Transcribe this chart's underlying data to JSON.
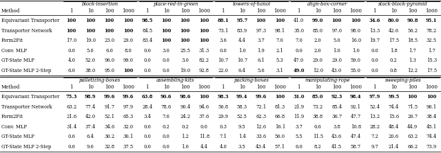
{
  "top_groups": [
    "block-insertion",
    "place-red-in-green",
    "towers-of-hanoi",
    "align-box-corner",
    "stack-block-pyramid"
  ],
  "bottom_groups": [
    "palletizing-boxes",
    "assembling-kits",
    "packing-boxes",
    "manipulating-rope",
    "sweeping-piles"
  ],
  "sub_cols": [
    "1",
    "10",
    "100",
    "1000"
  ],
  "methods": [
    "Equivariant Transporter",
    "Transporter Network",
    "Form2Fit",
    "Conv. MLP",
    "GT-State MLP",
    "GT-State MLP 2-Step"
  ],
  "top_data": {
    "block-insertion": {
      "Equivariant Transporter": [
        "100",
        "100",
        "100",
        "100"
      ],
      "Transporter Network": [
        "100",
        "100",
        "100",
        "100"
      ],
      "Form2Fit": [
        "17.0",
        "19.0",
        "23.0",
        "29.0"
      ],
      "Conv. MLP": [
        "0.0",
        "5.0",
        "6.0",
        "8.0"
      ],
      "GT-State MLP": [
        "4.0",
        "52.0",
        "96.0",
        "99.0"
      ],
      "GT-State MLP 2-Step": [
        "6.0",
        "38.0",
        "95.0",
        "100"
      ]
    },
    "place-red-in-green": {
      "Equivariant Transporter": [
        "98.5",
        "100",
        "100",
        "100"
      ],
      "Transporter Network": [
        "84.5",
        "100",
        "100",
        "100"
      ],
      "Form2Fit": [
        "83.4",
        "100",
        "100",
        "100"
      ],
      "Conv. MLP": [
        "0.0",
        "3.0",
        "25.5",
        "31.3"
      ],
      "GT-State MLP": [
        "0.0",
        "0.0",
        "3.0",
        "82.2"
      ],
      "GT-State MLP 2-Step": [
        "0.0",
        "0.0",
        "19.0",
        "92.8"
      ]
    },
    "towers-of-hanoi": {
      "Equivariant Transporter": [
        "88.1",
        "95.7",
        "100",
        "100"
      ],
      "Transporter Network": [
        "73.1",
        "83.9",
        "97.3",
        "98.1"
      ],
      "Form2Fit": [
        "3.6",
        "4.4",
        "3.7",
        "7.0"
      ],
      "Conv. MLP": [
        "0.0",
        "1.0",
        "1.9",
        "2.1"
      ],
      "GT-State MLP": [
        "10.7",
        "10.7",
        "6.1",
        "5.3"
      ],
      "GT-State MLP 2-Step": [
        "22.0",
        "6.4",
        "5.6",
        "3.1"
      ]
    },
    "align-box-corner": {
      "Equivariant Transporter": [
        "41.0",
        "99.0",
        "100",
        "100"
      ],
      "Transporter Network": [
        "35.0",
        "85.0",
        "97.0",
        "98.0"
      ],
      "Form2Fit": [
        "7.0",
        "2.0",
        "5.0",
        "16.0"
      ],
      "Conv. MLP": [
        "0.0",
        "2.0",
        "1.0",
        "1.0"
      ],
      "GT-State MLP": [
        "47.0",
        "29.0",
        "29.0",
        "59.0"
      ],
      "GT-State MLP 2-Step": [
        "49.0",
        "12.0",
        "43.0",
        "55.0"
      ]
    },
    "stack-block-pyramid": {
      "Equivariant Transporter": [
        "34.6",
        "80.0",
        "90.8",
        "95.1"
      ],
      "Transporter Network": [
        "13.3",
        "42.6",
        "56.2",
        "78.2"
      ],
      "Form2Fit": [
        "19.7",
        "17.5",
        "18.5",
        "32.5"
      ],
      "Conv. MLP": [
        "0.0",
        "1.8",
        "1.7",
        "1.7"
      ],
      "GT-State MLP": [
        "0.0",
        "0.2",
        "1.3",
        "15.3"
      ],
      "GT-State MLP 2-Step": [
        "0.0",
        "0.8",
        "12.2",
        "17.5"
      ]
    }
  },
  "bottom_data": {
    "palletizing-boxes": {
      "Equivariant Transporter": [
        "75.3",
        "98.9",
        "99.6",
        "99.6"
      ],
      "Transporter Network": [
        "63.2",
        "77.4",
        "91.7",
        "97.9"
      ],
      "Form2Fit": [
        "21.6",
        "42.0",
        "52.1",
        "65.3"
      ],
      "Conv. MLP": [
        "31.4",
        "37.4",
        "34.6",
        "32.0"
      ],
      "GT-State MLP": [
        "0.6",
        "6.4",
        "30.2",
        "30.1"
      ],
      "GT-State MLP 2-Step": [
        "0.6",
        "9.6",
        "32.8",
        "37.5"
      ]
    },
    "assembling-kits": {
      "Equivariant Transporter": [
        "63.8",
        "90.6",
        "98.6",
        "100"
      ],
      "Transporter Network": [
        "28.4",
        "78.6",
        "90.4",
        "94.6"
      ],
      "Form2Fit": [
        "3.4",
        "7.6",
        "24.2",
        "37.6"
      ],
      "Conv. MLP": [
        "0.0",
        "0.2",
        "0.2",
        "0.0"
      ],
      "GT-State MLP": [
        "0.0",
        "0.0",
        "1.2",
        "11.8"
      ],
      "GT-State MLP 2-Step": [
        "0.0",
        "0.0",
        "1.6",
        "4.4"
      ]
    },
    "packing-boxes": {
      "Equivariant Transporter": [
        "98.3",
        "99.4",
        "99.6",
        "100"
      ],
      "Transporter Network": [
        "56.8",
        "58.3",
        "72.1",
        "81.3"
      ],
      "Form2Fit": [
        "29.9",
        "52.5",
        "62.3",
        "66.8"
      ],
      "Conv. MLP": [
        "0.3",
        "9.5",
        "12.6",
        "16.1"
      ],
      "GT-State MLP": [
        "7.1",
        "1.4",
        "33.6",
        "56.0"
      ],
      "GT-State MLP 2-Step": [
        "4.0",
        "3.5",
        "43.4",
        "57.1"
      ]
    },
    "manipulating-rope": {
      "Equivariant Transporter": [
        "31.0",
        "85.0",
        "92.3",
        "98.4"
      ],
      "Transporter Network": [
        "21.9",
        "73.2",
        "85.4",
        "92.1"
      ],
      "Form2Fit": [
        "11.9",
        "38.8",
        "36.7",
        "47.7"
      ],
      "Conv. MLP": [
        "3.7",
        "6.6",
        "3.8",
        "10.8"
      ],
      "GT-State MLP": [
        "5.5",
        "11.5",
        "43.6",
        "47.4"
      ],
      "GT-State MLP 2-Step": [
        "6.0",
        "8.2",
        "41.5",
        "58.7"
      ]
    },
    "sweeping-piles": {
      "Equivariant Transporter": [
        "97.9",
        "99.5",
        "100",
        "100"
      ],
      "Transporter Network": [
        "52.4",
        "74.4",
        "71.5",
        "96.1"
      ],
      "Form2Fit": [
        "13.2",
        "15.6",
        "26.7",
        "38.4"
      ],
      "Conv. MLP": [
        "28.2",
        "48.4",
        "44.9",
        "45.1"
      ],
      "GT-State MLP": [
        "7.2",
        "20.6",
        "63.2",
        "74.4"
      ],
      "GT-State MLP 2-Step": [
        "9.7",
        "21.4",
        "66.2",
        "73.9"
      ]
    }
  },
  "bold_top": {
    "block-insertion": {
      "Equivariant Transporter": [
        true,
        true,
        true,
        true
      ],
      "Transporter Network": [
        true,
        true,
        true,
        true
      ],
      "Form2Fit": [
        false,
        false,
        false,
        false
      ],
      "Conv. MLP": [
        false,
        false,
        false,
        false
      ],
      "GT-State MLP": [
        false,
        false,
        false,
        false
      ],
      "GT-State MLP 2-Step": [
        false,
        false,
        false,
        true
      ]
    },
    "place-red-in-green": {
      "Equivariant Transporter": [
        true,
        true,
        true,
        true
      ],
      "Transporter Network": [
        false,
        true,
        true,
        true
      ],
      "Form2Fit": [
        false,
        true,
        true,
        true
      ],
      "Conv. MLP": [
        false,
        false,
        false,
        false
      ],
      "GT-State MLP": [
        false,
        false,
        false,
        false
      ],
      "GT-State MLP 2-Step": [
        false,
        false,
        false,
        false
      ]
    },
    "towers-of-hanoi": {
      "Equivariant Transporter": [
        true,
        true,
        true,
        true
      ],
      "Transporter Network": [
        false,
        false,
        false,
        false
      ],
      "Form2Fit": [
        false,
        false,
        false,
        false
      ],
      "Conv. MLP": [
        false,
        false,
        false,
        false
      ],
      "GT-State MLP": [
        false,
        false,
        false,
        false
      ],
      "GT-State MLP 2-Step": [
        false,
        false,
        false,
        false
      ]
    },
    "align-box-corner": {
      "Equivariant Transporter": [
        false,
        true,
        true,
        true
      ],
      "Transporter Network": [
        false,
        false,
        false,
        false
      ],
      "Form2Fit": [
        false,
        false,
        false,
        false
      ],
      "Conv. MLP": [
        false,
        false,
        false,
        false
      ],
      "GT-State MLP": [
        false,
        false,
        false,
        false
      ],
      "GT-State MLP 2-Step": [
        true,
        false,
        false,
        false
      ]
    },
    "stack-block-pyramid": {
      "Equivariant Transporter": [
        true,
        true,
        true,
        true
      ],
      "Transporter Network": [
        false,
        false,
        false,
        false
      ],
      "Form2Fit": [
        false,
        false,
        false,
        false
      ],
      "Conv. MLP": [
        false,
        false,
        false,
        false
      ],
      "GT-State MLP": [
        false,
        false,
        false,
        false
      ],
      "GT-State MLP 2-Step": [
        false,
        false,
        false,
        false
      ]
    }
  },
  "bold_bottom": {
    "palletizing-boxes": {
      "Equivariant Transporter": [
        true,
        true,
        true,
        true
      ],
      "Transporter Network": [
        false,
        false,
        false,
        false
      ],
      "Form2Fit": [
        false,
        false,
        false,
        false
      ],
      "Conv. MLP": [
        false,
        false,
        false,
        false
      ],
      "GT-State MLP": [
        false,
        false,
        false,
        false
      ],
      "GT-State MLP 2-Step": [
        false,
        false,
        false,
        false
      ]
    },
    "assembling-kits": {
      "Equivariant Transporter": [
        true,
        true,
        true,
        true
      ],
      "Transporter Network": [
        false,
        false,
        false,
        false
      ],
      "Form2Fit": [
        false,
        false,
        false,
        false
      ],
      "Conv. MLP": [
        false,
        false,
        false,
        false
      ],
      "GT-State MLP": [
        false,
        false,
        false,
        false
      ],
      "GT-State MLP 2-Step": [
        false,
        false,
        false,
        false
      ]
    },
    "packing-boxes": {
      "Equivariant Transporter": [
        true,
        true,
        true,
        true
      ],
      "Transporter Network": [
        false,
        false,
        false,
        false
      ],
      "Form2Fit": [
        false,
        false,
        false,
        false
      ],
      "Conv. MLP": [
        false,
        false,
        false,
        false
      ],
      "GT-State MLP": [
        false,
        false,
        false,
        false
      ],
      "GT-State MLP 2-Step": [
        false,
        false,
        false,
        false
      ]
    },
    "manipulating-rope": {
      "Equivariant Transporter": [
        true,
        true,
        true,
        true
      ],
      "Transporter Network": [
        false,
        false,
        false,
        false
      ],
      "Form2Fit": [
        false,
        false,
        false,
        false
      ],
      "Conv. MLP": [
        false,
        false,
        false,
        false
      ],
      "GT-State MLP": [
        false,
        false,
        false,
        false
      ],
      "GT-State MLP 2-Step": [
        false,
        false,
        false,
        false
      ]
    },
    "sweeping-piles": {
      "Equivariant Transporter": [
        true,
        true,
        true,
        true
      ],
      "Transporter Network": [
        false,
        false,
        false,
        false
      ],
      "Form2Fit": [
        false,
        false,
        false,
        false
      ],
      "Conv. MLP": [
        false,
        false,
        false,
        false
      ],
      "GT-State MLP": [
        false,
        false,
        false,
        false
      ],
      "GT-State MLP 2-Step": [
        false,
        false,
        false,
        false
      ]
    }
  }
}
